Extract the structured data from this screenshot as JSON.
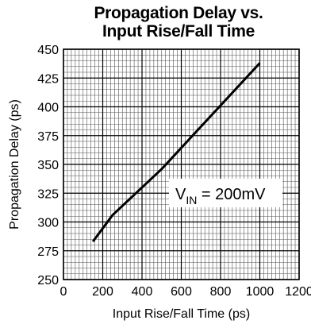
{
  "chart_data": {
    "type": "line",
    "title_line1": "Propagation Delay vs.",
    "title_line2": "Input Rise/Fall Time",
    "xlabel": "Input Rise/Fall Time (ps)",
    "ylabel": "Propagation Delay (ps)",
    "xlim": [
      0,
      1200
    ],
    "ylim": [
      250,
      450
    ],
    "xticks": [
      0,
      200,
      400,
      600,
      800,
      1000,
      1200
    ],
    "yticks": [
      250,
      275,
      300,
      325,
      350,
      375,
      400,
      425,
      450
    ],
    "grid": true,
    "annotation": {
      "main": "V",
      "sub": "IN",
      "rest": " = 200mV"
    },
    "series": [
      {
        "x": [
          150,
          250,
          500,
          1000
        ],
        "y": [
          283,
          306,
          346,
          438
        ]
      }
    ]
  }
}
